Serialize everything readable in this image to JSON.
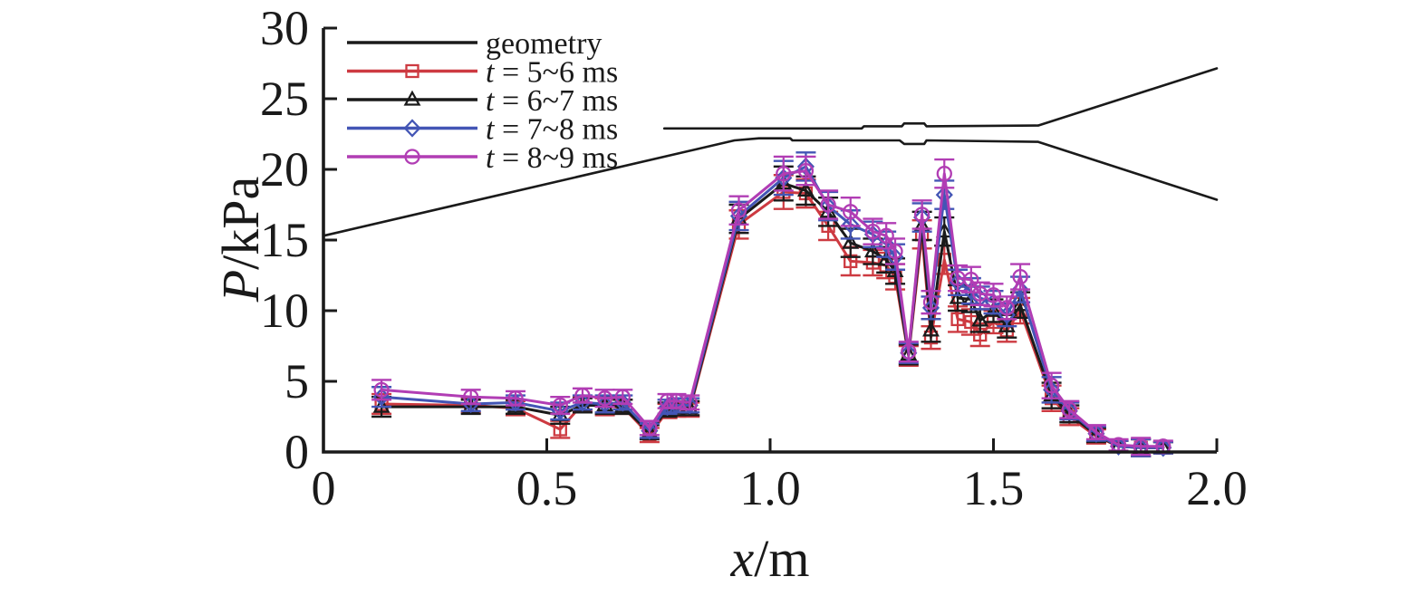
{
  "chart_data": {
    "type": "line",
    "title": "",
    "xlabel_parts": [
      {
        "text": "x",
        "italic": true
      },
      {
        "text": "/m",
        "italic": false
      }
    ],
    "ylabel_parts": [
      {
        "text": "P",
        "italic": true
      },
      {
        "text": "/kPa",
        "italic": false
      }
    ],
    "xlim": [
      0,
      2.0
    ],
    "ylim": [
      0,
      30
    ],
    "grid": false,
    "legend_position": "top-left-inside",
    "x_ticks": [
      {
        "value": 0.0,
        "label": "0"
      },
      {
        "value": 0.5,
        "label": "0.5"
      },
      {
        "value": 1.0,
        "label": "1.0"
      },
      {
        "value": 1.5,
        "label": "1.5"
      },
      {
        "value": 2.0,
        "label": "2.0"
      }
    ],
    "y_ticks": [
      {
        "value": 0,
        "label": "0"
      },
      {
        "value": 5,
        "label": "5"
      },
      {
        "value": 10,
        "label": "10"
      },
      {
        "value": 15,
        "label": "15"
      },
      {
        "value": 20,
        "label": "20"
      },
      {
        "value": 25,
        "label": "25"
      },
      {
        "value": 30,
        "label": "30"
      }
    ],
    "geometry": {
      "label": "geometry",
      "color": "#1a1a1a",
      "lower_wall": [
        [
          0.0,
          15.3
        ],
        [
          0.92,
          22.05
        ],
        [
          0.975,
          22.2
        ],
        [
          1.045,
          22.2
        ],
        [
          1.05,
          22.05
        ],
        [
          1.29,
          22.05
        ],
        [
          1.3,
          21.8
        ],
        [
          1.345,
          21.8
        ],
        [
          1.35,
          22.05
        ],
        [
          1.6,
          21.95
        ],
        [
          2.0,
          17.85
        ]
      ],
      "upper_wall": [
        [
          0.763,
          22.9
        ],
        [
          1.205,
          22.9
        ],
        [
          1.21,
          23.05
        ],
        [
          1.295,
          23.05
        ],
        [
          1.3,
          23.25
        ],
        [
          1.345,
          23.25
        ],
        [
          1.35,
          23.05
        ],
        [
          1.6,
          23.1
        ],
        [
          2.0,
          27.15
        ]
      ]
    },
    "x": [
      0.13,
      0.33,
      0.43,
      0.53,
      0.58,
      0.63,
      0.67,
      0.73,
      0.77,
      0.79,
      0.82,
      0.93,
      1.03,
      1.08,
      1.13,
      1.18,
      1.23,
      1.26,
      1.28,
      1.31,
      1.34,
      1.36,
      1.39,
      1.42,
      1.45,
      1.47,
      1.5,
      1.53,
      1.56,
      1.63,
      1.67,
      1.73,
      1.78,
      1.83,
      1.88
    ],
    "yerr": [
      0.7,
      0.5,
      0.5,
      0.6,
      0.5,
      0.6,
      0.5,
      0.5,
      0.5,
      0.5,
      0.5,
      1.0,
      1.2,
      1.0,
      1.0,
      1.0,
      0.9,
      0.9,
      0.9,
      0.7,
      1.0,
      0.8,
      1.0,
      0.9,
      0.9,
      0.8,
      0.8,
      0.8,
      0.9,
      0.9,
      0.6,
      0.5,
      0.4,
      0.6,
      0.4
    ],
    "series": [
      {
        "label_parts": [
          {
            "text": "t",
            "italic": true
          },
          {
            "text": " = 5~6 ms",
            "italic": false
          }
        ],
        "marker": "square",
        "color": "#cd3a41",
        "values": [
          3.4,
          3.3,
          3.1,
          1.6,
          3.4,
          3.2,
          3.2,
          1.2,
          2.9,
          3.0,
          3.0,
          16.1,
          18.4,
          18.3,
          16.0,
          13.5,
          13.4,
          13.2,
          12.4,
          6.8,
          15.4,
          8.1,
          13.6,
          9.4,
          9.2,
          8.3,
          9.2,
          8.6,
          10.0,
          3.8,
          2.5,
          1.1,
          0.4,
          0.3,
          0.3
        ]
      },
      {
        "label_parts": [
          {
            "text": "t",
            "italic": true
          },
          {
            "text": " = 6~7 ms",
            "italic": false
          }
        ],
        "marker": "triangle",
        "color": "#1a1a1a",
        "values": [
          3.2,
          3.2,
          3.2,
          2.6,
          3.3,
          3.3,
          3.2,
          1.4,
          3.0,
          3.1,
          3.1,
          16.5,
          19.0,
          18.5,
          17.0,
          14.8,
          14.2,
          13.6,
          12.8,
          6.9,
          16.0,
          8.6,
          15.6,
          10.9,
          10.8,
          9.3,
          10.0,
          8.9,
          10.4,
          4.0,
          2.7,
          1.2,
          0.4,
          0.3,
          0.3
        ]
      },
      {
        "label_parts": [
          {
            "text": "t",
            "italic": true
          },
          {
            "text": " = 7~8 ms",
            "italic": false
          }
        ],
        "marker": "diamond",
        "color": "#4355b5",
        "values": [
          3.9,
          3.4,
          3.5,
          2.9,
          3.5,
          3.4,
          3.5,
          1.5,
          3.2,
          3.3,
          3.3,
          16.7,
          19.4,
          20.2,
          17.4,
          16.1,
          15.4,
          14.7,
          13.8,
          7.0,
          16.6,
          10.2,
          18.2,
          12.0,
          11.4,
          10.9,
          10.6,
          9.7,
          11.5,
          4.4,
          2.9,
          1.3,
          0.4,
          0.3,
          0.3
        ]
      },
      {
        "label_parts": [
          {
            "text": "t",
            "italic": true
          },
          {
            "text": " = 8~9 ms",
            "italic": false
          }
        ],
        "marker": "circle",
        "color": "#b13db4",
        "values": [
          4.4,
          3.9,
          3.8,
          3.3,
          4.0,
          3.8,
          3.9,
          1.7,
          3.6,
          3.6,
          3.5,
          17.1,
          19.7,
          19.9,
          17.5,
          17.0,
          15.6,
          15.3,
          14.2,
          7.1,
          16.8,
          10.6,
          19.7,
          12.3,
          12.2,
          11.2,
          11.1,
          10.2,
          12.4,
          4.7,
          3.0,
          1.4,
          0.5,
          0.4,
          0.4
        ]
      }
    ]
  }
}
